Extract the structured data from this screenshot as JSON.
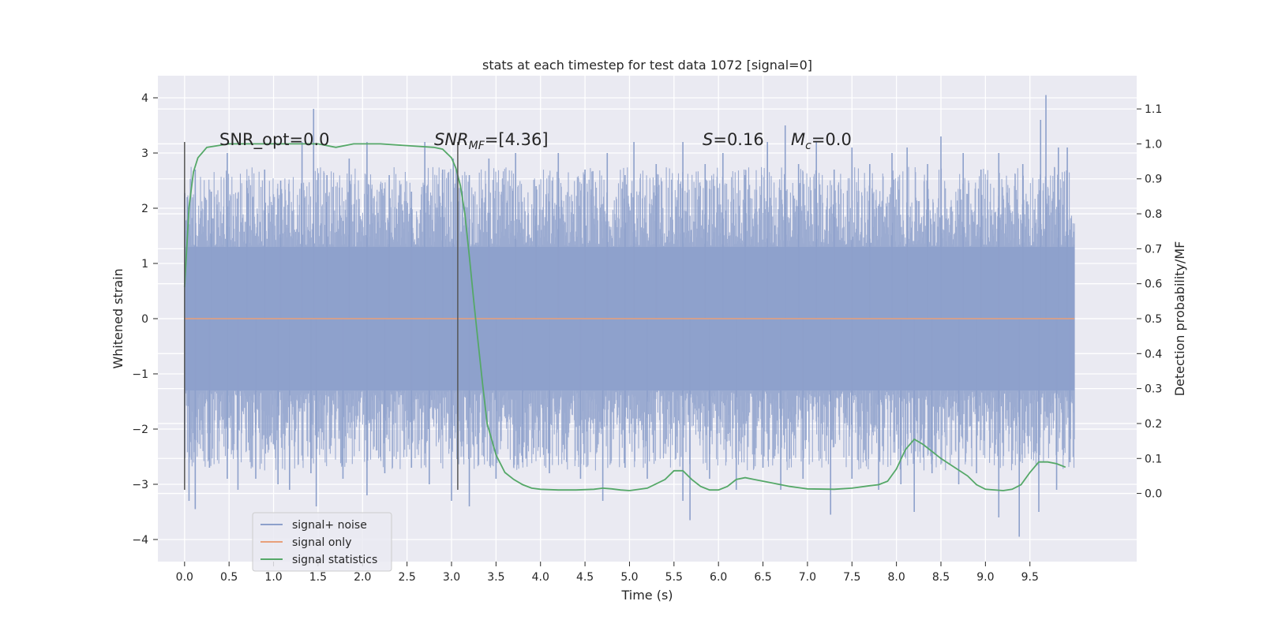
{
  "chart_data": {
    "type": "line",
    "title": "stats at each timestep for test data 1072 [signal=0]",
    "xlabel": "Time (s)",
    "ylabel": "Whitened strain",
    "y2label": "Detection probability/MF",
    "xlim": [
      -0.3,
      10.7
    ],
    "ylim": [
      -4.4,
      4.4
    ],
    "y2lim": [
      -0.195,
      1.195
    ],
    "x_ticks": [
      "0.0",
      "0.5",
      "1.0",
      "1.5",
      "2.0",
      "2.5",
      "3.0",
      "3.5",
      "4.0",
      "4.5",
      "5.0",
      "5.5",
      "6.0",
      "6.5",
      "7.0",
      "7.5",
      "8.0",
      "8.5",
      "9.0",
      "9.5"
    ],
    "y_ticks": [
      "4",
      "3",
      "2",
      "1",
      "0",
      "−1",
      "−2",
      "−3",
      "−4"
    ],
    "y2_ticks": [
      "1.1",
      "1.0",
      "0.9",
      "0.8",
      "0.7",
      "0.6",
      "0.5",
      "0.4",
      "0.3",
      "0.2",
      "0.1",
      "0.0"
    ],
    "grid": true,
    "legend_position": "lower-left",
    "legend": [
      {
        "label": "signal+ noise",
        "color": "#8da0cb"
      },
      {
        "label": "signal only",
        "color": "#e8a07a"
      },
      {
        "label": "signal statistics",
        "color": "#55a868"
      }
    ],
    "annotations": {
      "snr_opt": "SNR_opt=0.0",
      "snr_mf_name": "SNR",
      "snr_mf_sub": "MF",
      "snr_mf_val": "=[4.36]",
      "s_name": "S",
      "s_val": "=0.16",
      "mc_name": "M",
      "mc_sub": "c",
      "mc_val": "=0.0"
    },
    "vlines": [
      {
        "x": 0.0,
        "y_range": [
          -3.1,
          3.2
        ]
      },
      {
        "x": 3.07,
        "y_range": [
          -3.1,
          3.2
        ]
      }
    ],
    "series": [
      {
        "name": "signal+ noise",
        "kind": "noise",
        "x_range": [
          0.0,
          10.0
        ],
        "color": "#8da0cb",
        "dense_band": [
          -1.3,
          1.3
        ],
        "peaks_positive": [
          [
            0.03,
            2.2
          ],
          [
            0.12,
            2.7
          ],
          [
            0.3,
            2.3
          ],
          [
            0.48,
            3.0
          ],
          [
            0.7,
            2.5
          ],
          [
            0.9,
            2.7
          ],
          [
            1.08,
            2.5
          ],
          [
            1.32,
            3.2
          ],
          [
            1.45,
            3.8
          ],
          [
            1.6,
            2.6
          ],
          [
            1.85,
            2.9
          ],
          [
            2.05,
            3.2
          ],
          [
            2.3,
            2.6
          ],
          [
            2.55,
            2.3
          ],
          [
            2.7,
            3.2
          ],
          [
            2.9,
            2.7
          ],
          [
            3.02,
            2.9
          ],
          [
            3.2,
            2.6
          ],
          [
            3.42,
            2.9
          ],
          [
            3.72,
            3.0
          ],
          [
            3.95,
            2.4
          ],
          [
            4.2,
            3.0
          ],
          [
            4.5,
            2.7
          ],
          [
            4.75,
            3.0
          ],
          [
            4.95,
            2.6
          ],
          [
            5.05,
            3.2
          ],
          [
            5.3,
            2.8
          ],
          [
            5.6,
            3.2
          ],
          [
            5.85,
            2.8
          ],
          [
            6.05,
            3.0
          ],
          [
            6.3,
            2.6
          ],
          [
            6.55,
            3.2
          ],
          [
            6.75,
            3.5
          ],
          [
            6.9,
            2.8
          ],
          [
            7.1,
            3.2
          ],
          [
            7.3,
            2.7
          ],
          [
            7.5,
            3.1
          ],
          [
            7.7,
            2.8
          ],
          [
            7.95,
            3.0
          ],
          [
            8.12,
            3.1
          ],
          [
            8.35,
            2.8
          ],
          [
            8.5,
            3.3
          ],
          [
            8.75,
            3.0
          ],
          [
            8.95,
            2.7
          ],
          [
            9.15,
            3.0
          ],
          [
            9.42,
            2.8
          ],
          [
            9.62,
            3.6
          ],
          [
            9.68,
            4.05
          ],
          [
            9.82,
            3.1
          ],
          [
            9.92,
            3.1
          ]
        ],
        "peaks_negative": [
          [
            0.05,
            -3.3
          ],
          [
            0.12,
            -3.45
          ],
          [
            0.28,
            -2.7
          ],
          [
            0.48,
            -2.9
          ],
          [
            0.6,
            -3.1
          ],
          [
            0.8,
            -2.9
          ],
          [
            1.05,
            -3.0
          ],
          [
            1.18,
            -3.1
          ],
          [
            1.42,
            -2.8
          ],
          [
            1.48,
            -3.4
          ],
          [
            1.78,
            -2.9
          ],
          [
            2.05,
            -3.2
          ],
          [
            2.25,
            -2.8
          ],
          [
            2.55,
            -2.7
          ],
          [
            2.75,
            -3.0
          ],
          [
            3.0,
            -3.3
          ],
          [
            3.2,
            -3.4
          ],
          [
            3.5,
            -2.9
          ],
          [
            3.8,
            -2.6
          ],
          [
            4.1,
            -2.8
          ],
          [
            4.45,
            -2.9
          ],
          [
            4.7,
            -3.3
          ],
          [
            4.95,
            -2.7
          ],
          [
            5.2,
            -2.9
          ],
          [
            5.6,
            -3.3
          ],
          [
            5.68,
            -3.65
          ],
          [
            5.9,
            -2.9
          ],
          [
            6.2,
            -3.1
          ],
          [
            6.5,
            -2.7
          ],
          [
            6.7,
            -3.1
          ],
          [
            6.95,
            -2.9
          ],
          [
            7.26,
            -3.55
          ],
          [
            7.5,
            -2.9
          ],
          [
            7.8,
            -3.1
          ],
          [
            8.05,
            -3.0
          ],
          [
            8.2,
            -3.5
          ],
          [
            8.4,
            -2.8
          ],
          [
            8.7,
            -3.0
          ],
          [
            8.9,
            -2.8
          ],
          [
            9.15,
            -3.6
          ],
          [
            9.38,
            -3.95
          ],
          [
            9.6,
            -3.5
          ],
          [
            9.8,
            -3.1
          ],
          [
            9.95,
            -2.6
          ]
        ]
      },
      {
        "name": "signal only",
        "kind": "line",
        "axis": "left",
        "color": "#e8a07a",
        "x": [
          0.0,
          10.0
        ],
        "y": [
          0.0,
          0.0
        ]
      },
      {
        "name": "signal statistics",
        "kind": "line",
        "axis": "right",
        "color": "#55a868",
        "x": [
          0.0,
          0.05,
          0.1,
          0.15,
          0.25,
          0.5,
          1.0,
          1.5,
          1.7,
          1.9,
          2.2,
          2.5,
          2.8,
          2.9,
          3.0,
          3.05,
          3.1,
          3.15,
          3.2,
          3.25,
          3.3,
          3.35,
          3.4,
          3.5,
          3.6,
          3.7,
          3.8,
          3.9,
          4.0,
          4.2,
          4.4,
          4.6,
          4.7,
          4.8,
          4.9,
          5.0,
          5.2,
          5.4,
          5.5,
          5.6,
          5.7,
          5.8,
          5.9,
          6.0,
          6.1,
          6.2,
          6.3,
          6.4,
          6.6,
          6.8,
          7.0,
          7.3,
          7.5,
          7.7,
          7.8,
          7.9,
          8.0,
          8.1,
          8.2,
          8.3,
          8.5,
          8.8,
          8.9,
          9.0,
          9.2,
          9.3,
          9.4,
          9.5,
          9.6,
          9.7,
          9.8,
          9.9
        ],
        "y": [
          0.59,
          0.82,
          0.92,
          0.96,
          0.99,
          1.0,
          1.0,
          1.0,
          0.99,
          1.0,
          1.0,
          0.995,
          0.99,
          0.985,
          0.96,
          0.93,
          0.88,
          0.8,
          0.68,
          0.55,
          0.43,
          0.31,
          0.2,
          0.11,
          0.06,
          0.04,
          0.025,
          0.015,
          0.012,
          0.01,
          0.01,
          0.012,
          0.015,
          0.013,
          0.01,
          0.008,
          0.015,
          0.04,
          0.065,
          0.065,
          0.04,
          0.02,
          0.01,
          0.01,
          0.02,
          0.04,
          0.045,
          0.04,
          0.03,
          0.02,
          0.013,
          0.012,
          0.015,
          0.022,
          0.025,
          0.035,
          0.07,
          0.125,
          0.155,
          0.14,
          0.1,
          0.05,
          0.025,
          0.012,
          0.008,
          0.012,
          0.025,
          0.06,
          0.09,
          0.09,
          0.085,
          0.075
        ]
      }
    ]
  }
}
